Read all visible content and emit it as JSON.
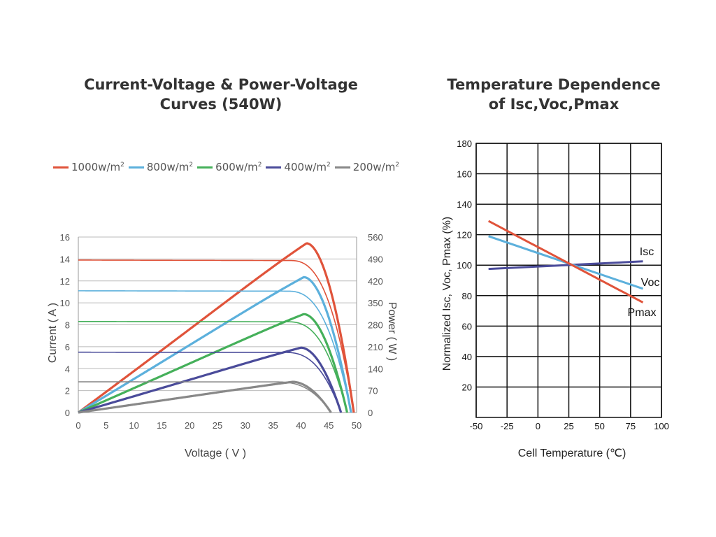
{
  "chart_data": [
    {
      "type": "line",
      "title_line1": "Current-Voltage & Power-Voltage",
      "title_line2": "Curves (540W)",
      "xlabel": "Voltage ( V )",
      "ylabel": "Current ( A )",
      "y2label": "Power ( W )",
      "xlim": [
        0,
        50
      ],
      "ylim": [
        0,
        16
      ],
      "y2lim": [
        0,
        560
      ],
      "x_ticks": [
        "0",
        "5",
        "10",
        "15",
        "20",
        "25",
        "30",
        "35",
        "40",
        "45",
        "50"
      ],
      "y_ticks": [
        "0",
        "2",
        "4",
        "6",
        "8",
        "10",
        "12",
        "14",
        "16"
      ],
      "y2_ticks": [
        "0",
        "70",
        "140",
        "210",
        "280",
        "350",
        "420",
        "490",
        "560"
      ],
      "grid": "horizontal",
      "legend": "top",
      "series": [
        {
          "name": "1000w/m",
          "unit_sup": "2",
          "color": "#e0533a",
          "isc": 13.9,
          "voc": 49.5,
          "vmp": 41.0,
          "pmax": 540
        },
        {
          "name": "800w/m",
          "unit_sup": "2",
          "color": "#5cb0dc",
          "isc": 11.1,
          "voc": 49.0,
          "vmp": 40.5,
          "pmax": 432
        },
        {
          "name": "600w/m",
          "unit_sup": "2",
          "color": "#45b05a",
          "isc": 8.3,
          "voc": 48.3,
          "vmp": 40.5,
          "pmax": 314
        },
        {
          "name": "400w/m",
          "unit_sup": "2",
          "color": "#4a4b9a",
          "isc": 5.5,
          "voc": 47.2,
          "vmp": 40.0,
          "pmax": 207
        },
        {
          "name": "200w/m",
          "unit_sup": "2",
          "color": "#888888",
          "isc": 2.8,
          "voc": 45.4,
          "vmp": 38.5,
          "pmax": 98
        }
      ]
    },
    {
      "type": "line",
      "title_line1": "Temperature Dependence",
      "title_line2": "of Isc,Voc,Pmax",
      "xlabel": "Cell Temperature (℃)",
      "ylabel": "Normalized Isc, Voc, Pmax (%)",
      "xlim": [
        -50,
        100
      ],
      "ylim": [
        0,
        180
      ],
      "x_ticks": [
        "-50",
        "-25",
        "0",
        "25",
        "50",
        "75",
        "100"
      ],
      "y_ticks": [
        "20",
        "40",
        "60",
        "80",
        "100",
        "120",
        "140",
        "160",
        "180"
      ],
      "grid": "both",
      "series": [
        {
          "name": "Isc",
          "color": "#4a4b9a",
          "x": [
            -40,
            85
          ],
          "y": [
            97.5,
            102.5
          ]
        },
        {
          "name": "Voc",
          "color": "#5cb0dc",
          "x": [
            -40,
            85
          ],
          "y": [
            119,
            84.5
          ]
        },
        {
          "name": "Pmax",
          "color": "#e0533a",
          "x": [
            -40,
            85
          ],
          "y": [
            129,
            75.5
          ]
        }
      ]
    }
  ]
}
